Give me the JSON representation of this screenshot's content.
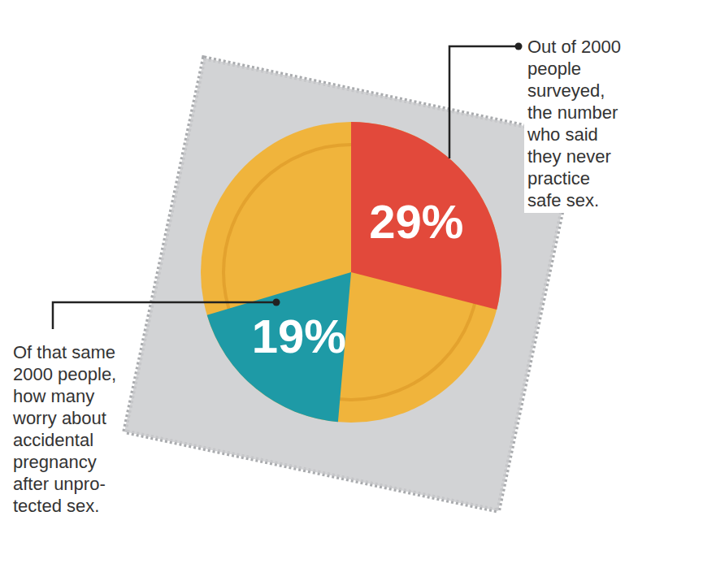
{
  "chart_data": {
    "type": "pie",
    "values": [
      29,
      19
    ],
    "value_labels": [
      "29%",
      "19%"
    ],
    "colors": [
      "#e2493b",
      "#1e9aa6"
    ],
    "data_labels": true,
    "annotations": [
      [
        "Out of 2000",
        "people",
        "surveyed,",
        "the number",
        "who said",
        "they never",
        "practice",
        "safe sex."
      ],
      [
        "Of that same",
        "2000 people,",
        "how many",
        "worry about",
        "accidental",
        "pregnancy",
        "after unpro-",
        "tected sex."
      ]
    ]
  }
}
